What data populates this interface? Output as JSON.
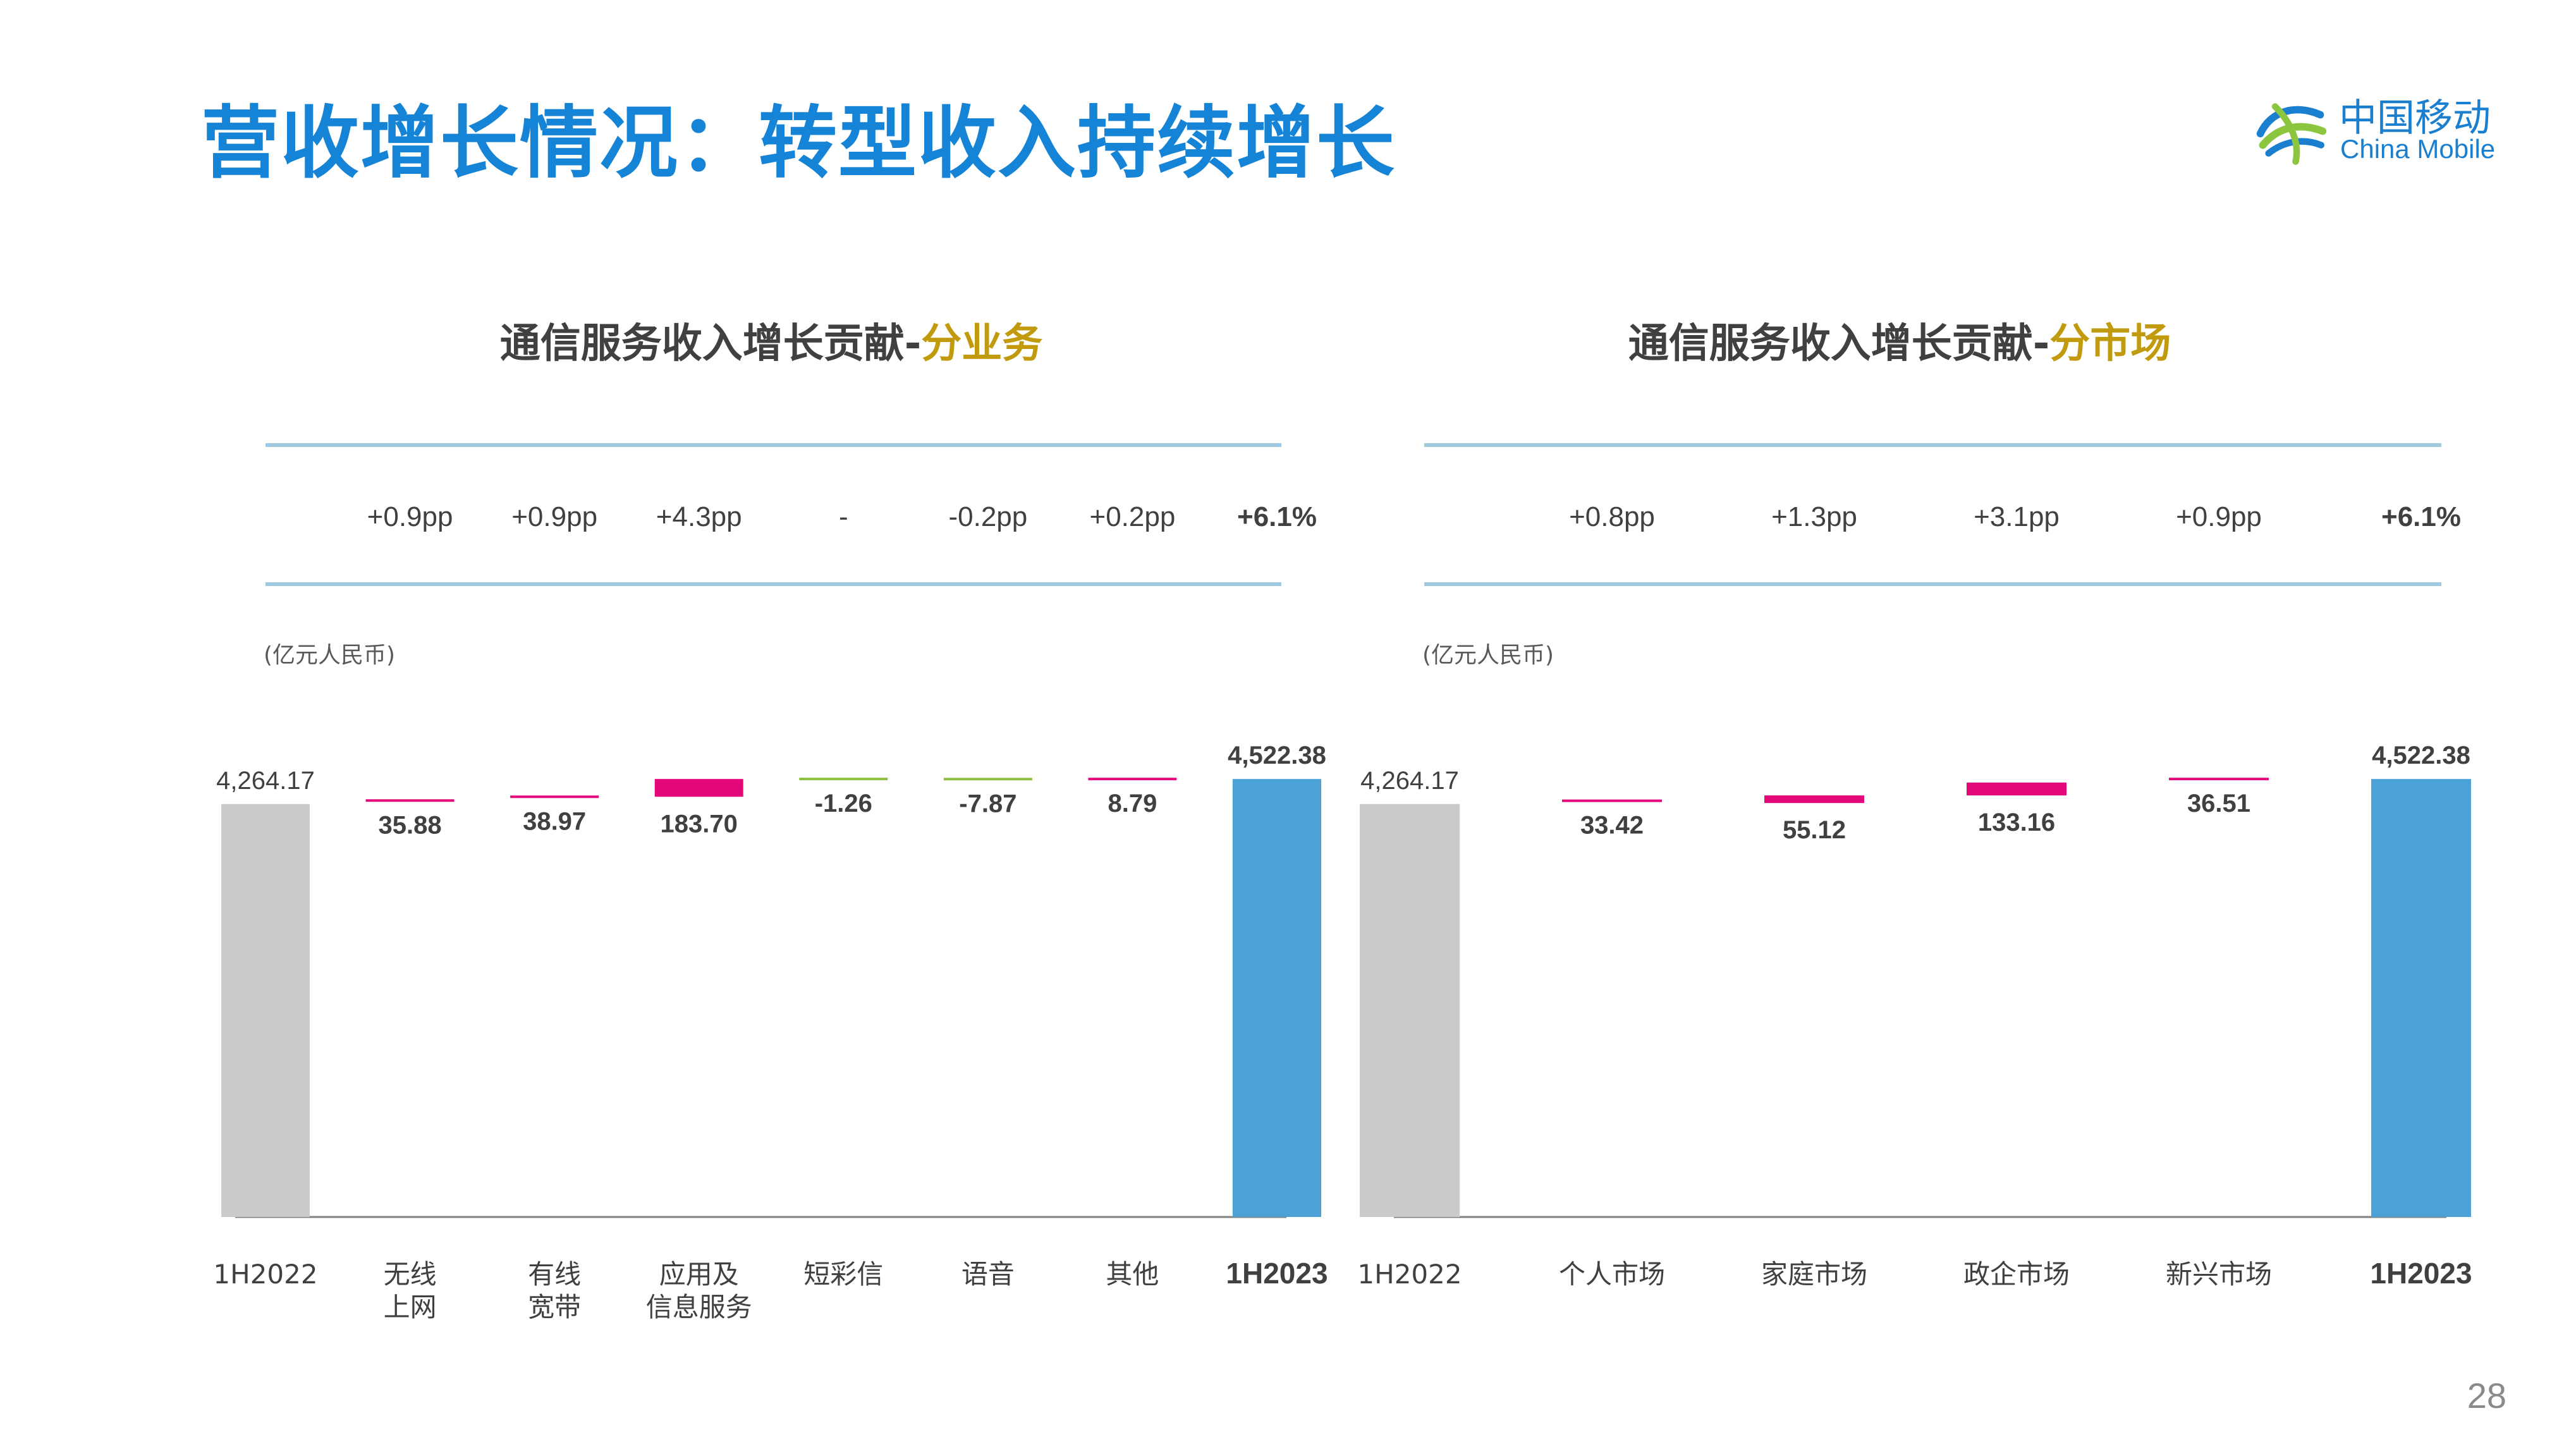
{
  "page": {
    "title": "营收增长情况：转型收入持续增长",
    "page_number": "28",
    "logo": {
      "cn": "中国移动",
      "en": "China Mobile"
    }
  },
  "colors": {
    "title_blue": "#1583d6",
    "start_bar": "#cbcbcb",
    "end_bar": "#4ba2d7",
    "increase": "#e3077a",
    "decrease": "#8cbf3f",
    "header_rule": "#9ec9e0",
    "title_accent": "#c29a0e"
  },
  "chart_data": [
    {
      "type": "waterfall",
      "title": {
        "main": "通信服务收入增长贡献-",
        "accent": "分业务"
      },
      "unit": "(亿元人民币)",
      "ylim": [
        0,
        4700
      ],
      "start": 4264.17,
      "categories": [
        [
          "1H2022"
        ],
        [
          "无线",
          "上网"
        ],
        [
          "有线",
          "宽带"
        ],
        [
          "应用及",
          "信息服务"
        ],
        [
          "短彩信"
        ],
        [
          "语音"
        ],
        [
          "其他"
        ],
        [
          "1H2023"
        ]
      ],
      "values": [
        4264.17,
        35.88,
        38.97,
        183.7,
        -1.26,
        -7.87,
        8.79,
        4522.38
      ],
      "value_labels": [
        "4,264.17",
        "35.88",
        "38.97",
        "183.70",
        "-1.26",
        "-7.87",
        "8.79",
        "4,522.38"
      ],
      "contributions": [
        "",
        "+0.9pp",
        "+0.9pp",
        "+4.3pp",
        "-",
        "-0.2pp",
        "+0.2pp",
        "+6.1%"
      ],
      "bar_kinds": [
        "start",
        "delta",
        "delta",
        "delta",
        "delta",
        "delta",
        "delta",
        "end"
      ]
    },
    {
      "type": "waterfall",
      "title": {
        "main": "通信服务收入增长贡献-",
        "accent": "分市场"
      },
      "unit": "(亿元人民币)",
      "ylim": [
        0,
        4700
      ],
      "start": 4264.17,
      "categories": [
        [
          "1H2022"
        ],
        [
          "个人市场"
        ],
        [
          "家庭市场"
        ],
        [
          "政企市场"
        ],
        [
          "新兴市场"
        ],
        [
          "1H2023"
        ]
      ],
      "values": [
        4264.17,
        33.42,
        55.12,
        133.16,
        36.51,
        4522.38
      ],
      "value_labels": [
        "4,264.17",
        "33.42",
        "55.12",
        "133.16",
        "36.51",
        "4,522.38"
      ],
      "contributions": [
        "",
        "+0.8pp",
        "+1.3pp",
        "+3.1pp",
        "+0.9pp",
        "+6.1%"
      ],
      "bar_kinds": [
        "start",
        "delta",
        "delta",
        "delta",
        "delta",
        "end"
      ]
    }
  ]
}
